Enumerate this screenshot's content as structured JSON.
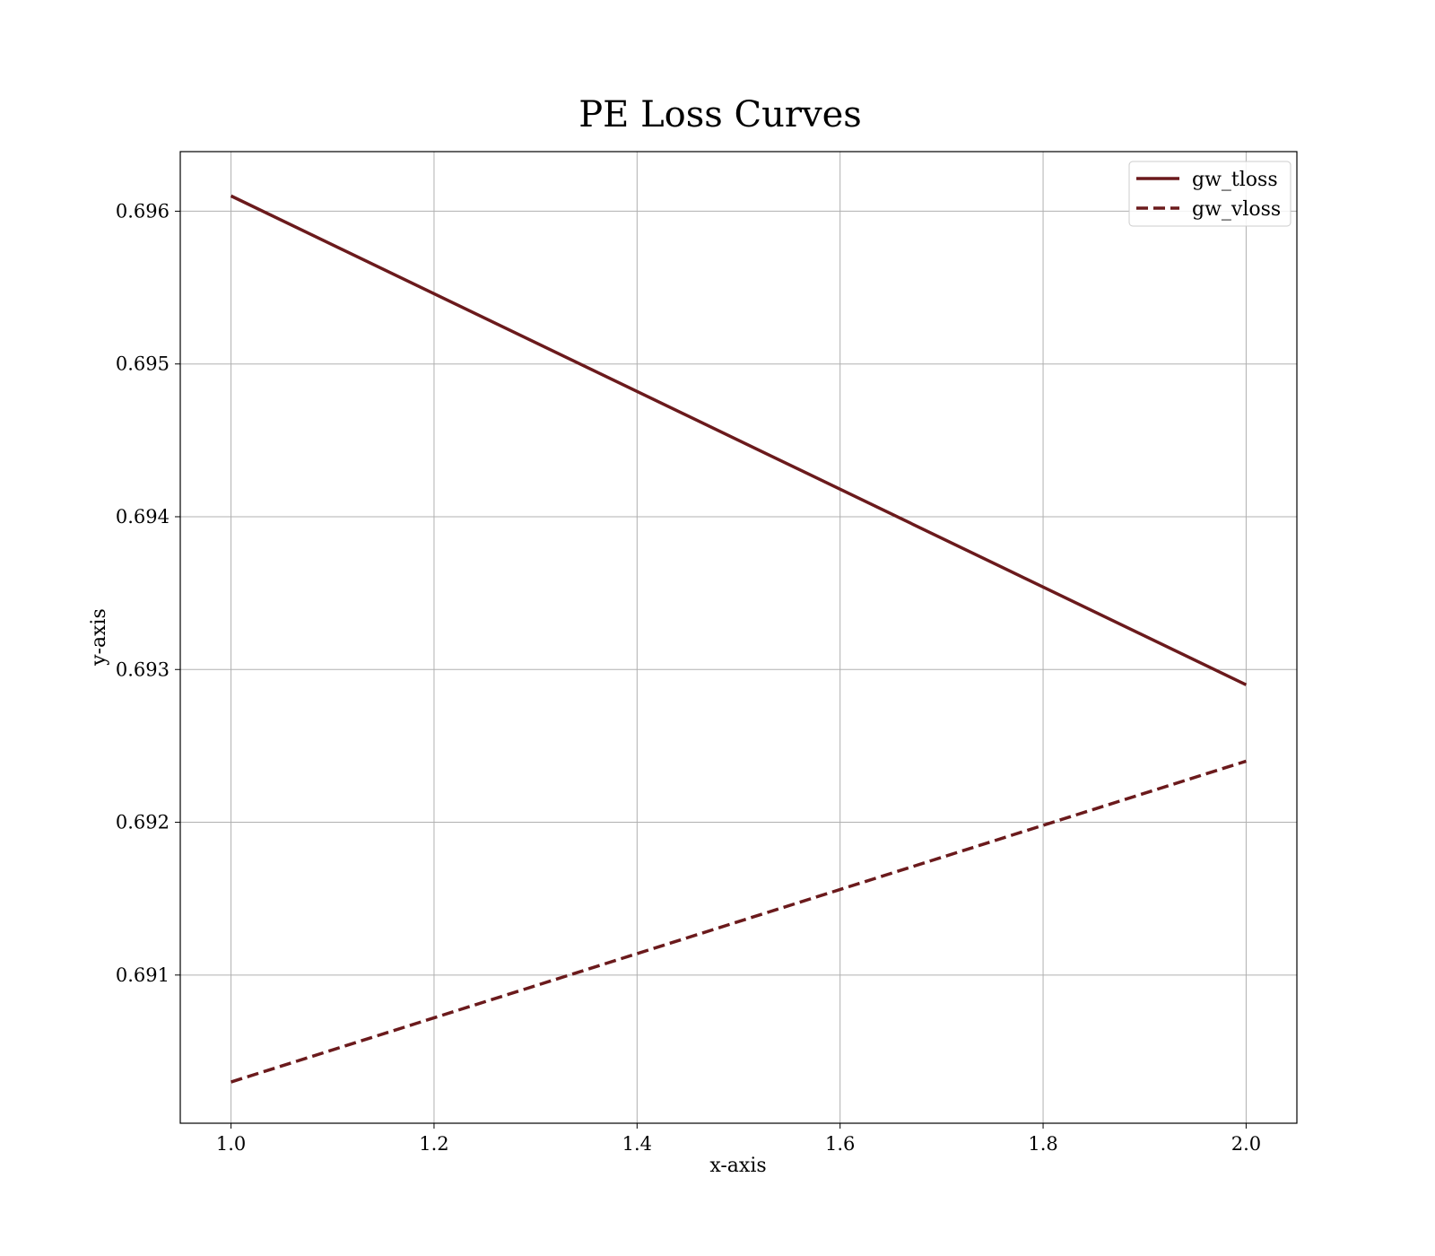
{
  "chart_data": {
    "type": "line",
    "title": "PE Loss Curves",
    "xlabel": "x-axis",
    "ylabel": "y-axis",
    "x": [
      1.0,
      2.0
    ],
    "series": [
      {
        "name": "gw_tloss",
        "values": [
          0.6961,
          0.6929
        ],
        "style": "solid",
        "color": "#6b1a1c"
      },
      {
        "name": "gw_vloss",
        "values": [
          0.6903,
          0.6924
        ],
        "style": "dashed",
        "color": "#6b1a1c"
      }
    ],
    "xlim": [
      0.95,
      2.05
    ],
    "ylim": [
      0.69003,
      0.69639
    ],
    "xticks": [
      1.0,
      1.2,
      1.4,
      1.6,
      1.8,
      2.0
    ],
    "xtick_labels": [
      "1.0",
      "1.2",
      "1.4",
      "1.6",
      "1.8",
      "2.0"
    ],
    "yticks": [
      0.691,
      0.692,
      0.693,
      0.694,
      0.695,
      0.696
    ],
    "ytick_labels": [
      "0.691",
      "0.692",
      "0.693",
      "0.694",
      "0.695",
      "0.696"
    ],
    "grid": true,
    "legend_position": "top-right"
  }
}
